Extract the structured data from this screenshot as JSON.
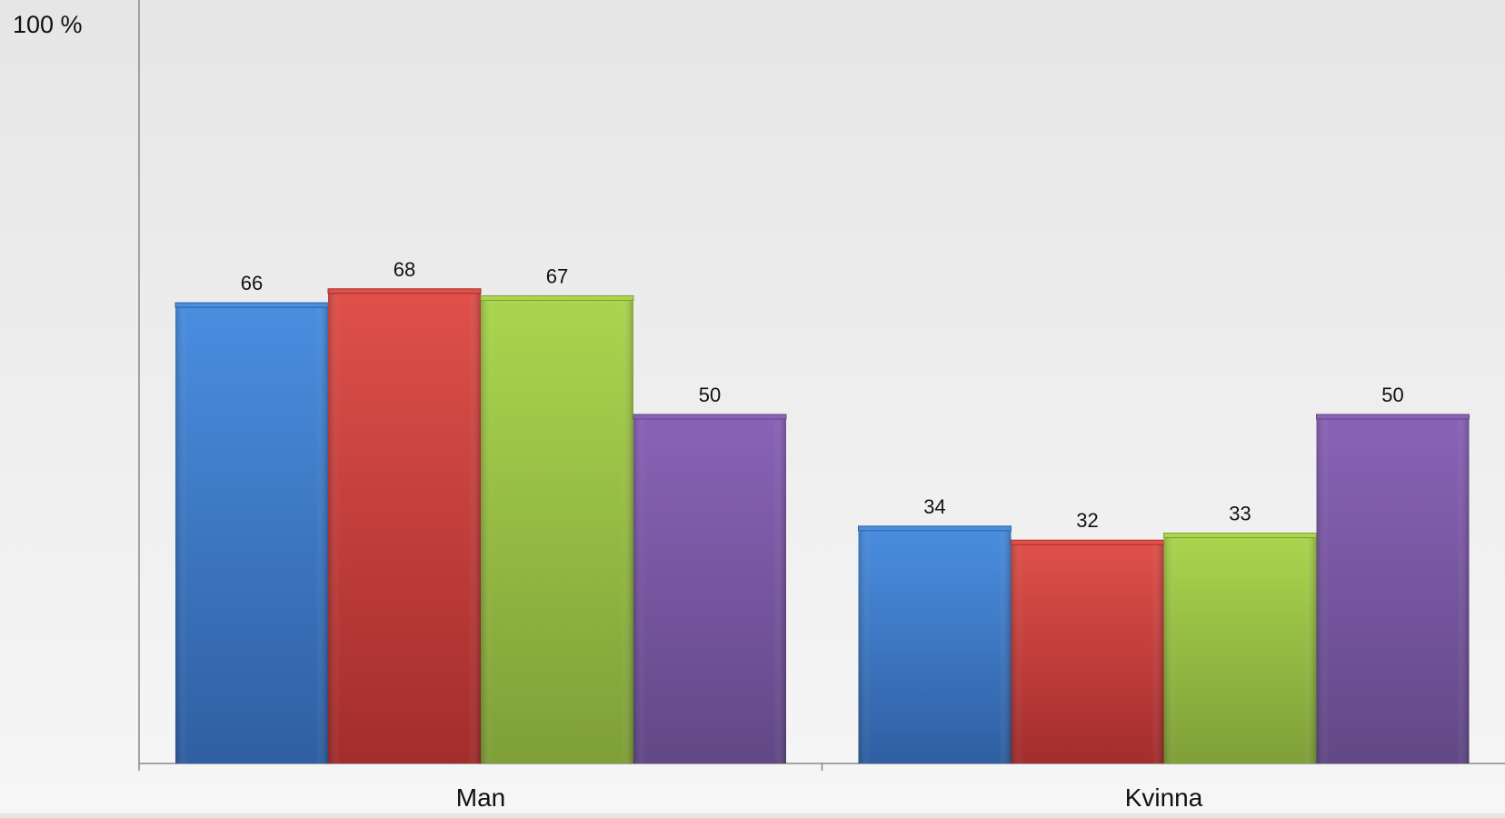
{
  "chart_data": {
    "type": "bar",
    "title": "",
    "xlabel": "",
    "ylabel": "",
    "ylim": [
      0,
      100
    ],
    "y_max_label": "100 %",
    "categories": [
      "Man",
      "Kvinna"
    ],
    "series": [
      {
        "values": [
          66,
          34
        ],
        "color": "#3f7fd0",
        "color_light": "#4a8ee0",
        "color_dark": "#2f5fa2"
      },
      {
        "values": [
          68,
          32
        ],
        "color": "#d13f3c",
        "color_light": "#e0504a",
        "color_dark": "#a32d2d"
      },
      {
        "values": [
          67,
          33
        ],
        "color": "#9fc842",
        "color_light": "#aad64e",
        "color_dark": "#7f9f38"
      },
      {
        "values": [
          50,
          50
        ],
        "color": "#7f5aa9",
        "color_light": "#8a63b8",
        "color_dark": "#624886"
      }
    ],
    "grid": false,
    "legend": "none",
    "data_labels": true
  }
}
